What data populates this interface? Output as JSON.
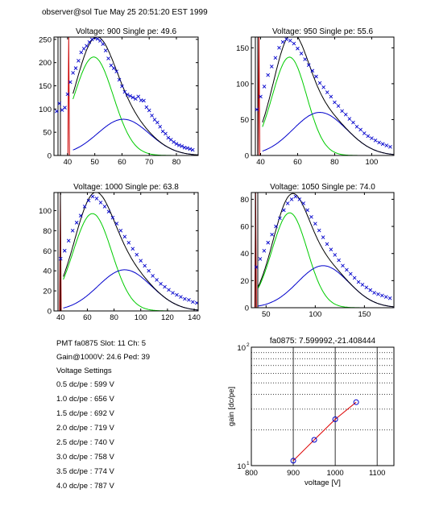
{
  "header": {
    "text": "observer@sol  Tue May 25 20:51:20 EST 1999"
  },
  "info": {
    "line1": "PMT fa0875 Slot: 11 Ch: 5",
    "line2": "Gain@1000V: 24.6 Ped: 39",
    "line3": "Voltage Settings",
    "settings": [
      "0.5 dc/pe : 599 V",
      "1.0 dc/pe : 656 V",
      "1.5 dc/pe : 692 V",
      "2.0 dc/pe : 719 V",
      "2.5 dc/pe : 740 V",
      "3.0 dc/pe : 758 V",
      "3.5 dc/pe : 774 V",
      "4.0 dc/pe : 787 V"
    ]
  },
  "colors": {
    "data": "#0000cc",
    "total_fit": "#000000",
    "single_pe": "#00cc00",
    "double_pe": "#0000cc",
    "pedestal": "#cc0000",
    "gain_line": "#dd0000",
    "gain_marker": "#0000cc"
  },
  "chart_data": [
    {
      "type": "scatter",
      "title": "Voltage: 900 Single pe: 49.6",
      "xlim": [
        35,
        88
      ],
      "ylim": [
        0,
        255
      ],
      "xticks": [
        40,
        50,
        60,
        70,
        80
      ],
      "yticks": [
        0,
        50,
        100,
        150,
        200,
        250
      ],
      "pedestal_x": 41,
      "pedestal_y": 255,
      "components": {
        "single_pe": {
          "amp": 212,
          "mu": 49.6,
          "sigma": 7.2
        },
        "double_pe": {
          "amp": 78,
          "mu": 60.5,
          "sigma": 9.5
        }
      },
      "series": [
        {
          "x": [
            36,
            37,
            38,
            39,
            40,
            41,
            42,
            43,
            44,
            45,
            46,
            47,
            48,
            49,
            50,
            51,
            52,
            53,
            54,
            55,
            56,
            57,
            58,
            59,
            60,
            61,
            62,
            63,
            64,
            65,
            66,
            67,
            68,
            69,
            70,
            71,
            72,
            73,
            74,
            75,
            76,
            77,
            78,
            79,
            80,
            81,
            82,
            83,
            84,
            85,
            86
          ],
          "y": [
            95,
            112,
            98,
            103,
            132,
            158,
            178,
            188,
            204,
            222,
            230,
            236,
            244,
            250,
            254,
            251,
            247,
            240,
            226,
            209,
            194,
            188,
            181,
            163,
            149,
            137,
            131,
            128,
            125,
            122,
            127,
            119,
            118,
            104,
            97,
            86,
            77,
            71,
            62,
            52,
            47,
            38,
            34,
            29,
            25,
            22,
            20,
            17,
            16,
            14,
            12
          ]
        }
      ]
    },
    {
      "type": "scatter",
      "title": "Voltage: 950 Single pe: 55.6",
      "xlim": [
        35,
        112
      ],
      "ylim": [
        0,
        165
      ],
      "xticks": [
        40,
        60,
        80,
        100
      ],
      "yticks": [
        0,
        50,
        100,
        150
      ],
      "pedestal_x": 40,
      "pedestal_y": 165,
      "components": {
        "single_pe": {
          "amp": 137,
          "mu": 55.6,
          "sigma": 9.3
        },
        "double_pe": {
          "amp": 60,
          "mu": 72,
          "sigma": 14.5
        }
      },
      "series": [
        {
          "x": [
            38,
            40,
            42,
            44,
            46,
            48,
            50,
            52,
            54,
            56,
            58,
            60,
            62,
            64,
            66,
            68,
            70,
            72,
            74,
            76,
            78,
            80,
            82,
            84,
            86,
            88,
            90,
            92,
            94,
            96,
            98,
            100,
            102,
            104,
            106,
            108,
            110
          ],
          "y": [
            64,
            82,
            96,
            112,
            124,
            136,
            150,
            158,
            162,
            160,
            156,
            149,
            142,
            134,
            126,
            118,
            110,
            101,
            95,
            88,
            82,
            74,
            69,
            62,
            57,
            51,
            46,
            40,
            36,
            31,
            27,
            24,
            21,
            18,
            16,
            14,
            12
          ]
        }
      ]
    },
    {
      "type": "scatter",
      "title": "Voltage: 1000 Single pe: 63.8",
      "xlim": [
        35,
        143
      ],
      "ylim": [
        0,
        118
      ],
      "xticks": [
        40,
        60,
        80,
        100,
        120,
        140
      ],
      "yticks": [
        0,
        20,
        40,
        60,
        80,
        100
      ],
      "pedestal_x": 41,
      "pedestal_y": 118,
      "components": {
        "single_pe": {
          "amp": 97,
          "mu": 63.8,
          "sigma": 14.5
        },
        "double_pe": {
          "amp": 41,
          "mu": 88,
          "sigma": 20
        }
      },
      "series": [
        {
          "x": [
            40,
            43,
            46,
            49,
            52,
            55,
            58,
            61,
            64,
            67,
            70,
            73,
            76,
            79,
            82,
            85,
            88,
            91,
            94,
            97,
            100,
            103,
            106,
            109,
            112,
            115,
            118,
            121,
            124,
            127,
            130,
            133,
            136,
            139,
            142
          ],
          "y": [
            52,
            60,
            70,
            80,
            88,
            95,
            104,
            110,
            114,
            112,
            108,
            104,
            99,
            93,
            87,
            80,
            74,
            68,
            62,
            56,
            50,
            45,
            40,
            35,
            31,
            27,
            24,
            21,
            18,
            16,
            14,
            12,
            11,
            9,
            8
          ]
        }
      ]
    },
    {
      "type": "scatter",
      "title": "Voltage: 1050 Single pe: 74.0",
      "xlim": [
        35,
        180
      ],
      "ylim": [
        0,
        85
      ],
      "xticks": [
        50,
        100,
        150
      ],
      "yticks": [
        0,
        20,
        40,
        60,
        80
      ],
      "pedestal_x": 41,
      "pedestal_y": 85,
      "components": {
        "single_pe": {
          "amp": 70,
          "mu": 74.0,
          "sigma": 18
        },
        "double_pe": {
          "amp": 31,
          "mu": 108,
          "sigma": 26
        }
      },
      "series": [
        {
          "x": [
            40,
            44,
            48,
            52,
            56,
            60,
            64,
            68,
            72,
            76,
            80,
            84,
            88,
            92,
            96,
            100,
            104,
            108,
            112,
            116,
            120,
            124,
            128,
            132,
            136,
            140,
            144,
            148,
            152,
            156,
            160,
            164,
            168,
            172,
            176
          ],
          "y": [
            30,
            36,
            42,
            48,
            54,
            60,
            66,
            72,
            77,
            80,
            82,
            80,
            77,
            72,
            67,
            62,
            57,
            52,
            47,
            43,
            39,
            35,
            31,
            28,
            25,
            22,
            19,
            17,
            15,
            13,
            11,
            10,
            9,
            8,
            7
          ]
        }
      ]
    },
    {
      "type": "line",
      "title": "fa0875: 7.599992,-21.408444",
      "xlabel": "voltage [V]",
      "ylabel": "gain [dc/pe]",
      "xlim": [
        800,
        1140
      ],
      "ylim": [
        10,
        100
      ],
      "yscale": "log",
      "xticks": [
        800,
        900,
        1000,
        1100
      ],
      "yticks": [
        {
          "value": 10,
          "label": "10",
          "sup": "1"
        },
        {
          "value": 100,
          "label": "10",
          "sup": "2"
        }
      ],
      "x": [
        900,
        950,
        1000,
        1050
      ],
      "y": [
        11.0,
        16.5,
        24.6,
        34.3
      ]
    }
  ]
}
